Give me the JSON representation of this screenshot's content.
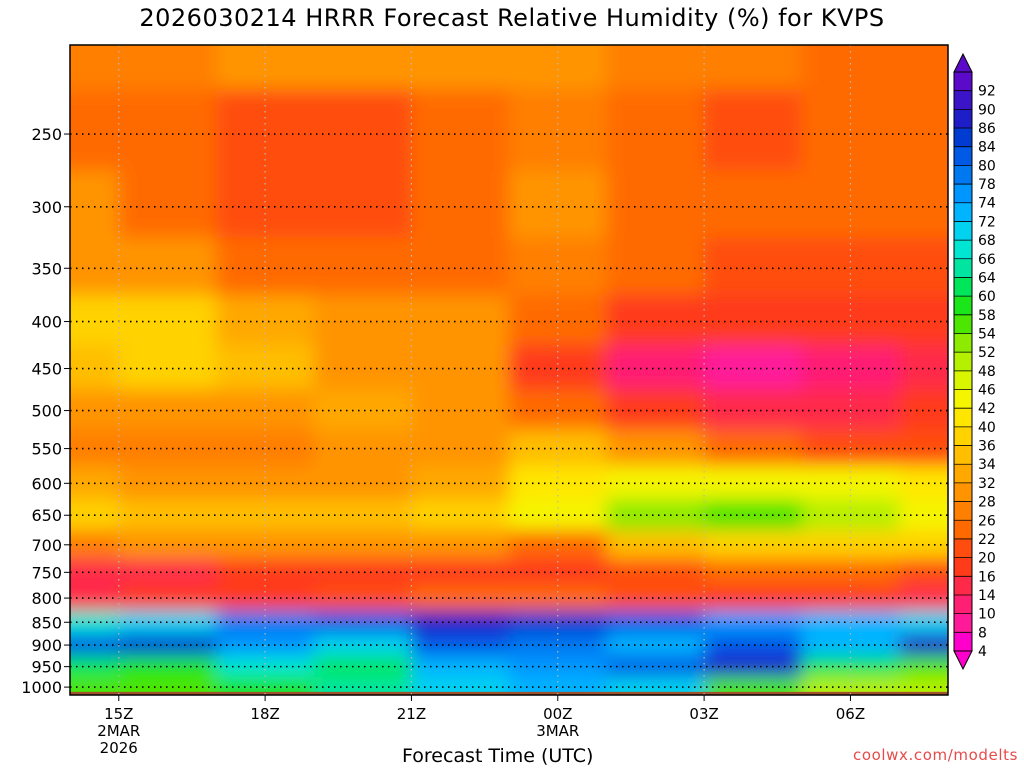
{
  "chart_data": {
    "type": "heatmap",
    "title": "2026030214 HRRR Forecast Relative Humidity (%) for KVPS",
    "xlabel": "Forecast Time (UTC)",
    "ylabel": "",
    "credit": "coolwx.com/modelts",
    "x_ticks": [
      {
        "label": "15Z",
        "sub": [
          "2MAR",
          "2026"
        ],
        "hours": 0
      },
      {
        "label": "18Z",
        "sub": [],
        "hours": 3
      },
      {
        "label": "21Z",
        "sub": [],
        "hours": 6
      },
      {
        "label": "00Z",
        "sub": [
          "3MAR"
        ],
        "hours": 9
      },
      {
        "label": "03Z",
        "sub": [],
        "hours": 12
      },
      {
        "label": "06Z",
        "sub": [],
        "hours": 15
      }
    ],
    "xlim_hours": [
      -1,
      17
    ],
    "y_ticks": [
      250,
      300,
      350,
      400,
      450,
      500,
      550,
      600,
      650,
      700,
      750,
      800,
      850,
      900,
      950,
      1000
    ],
    "ylim_hpa": [
      200,
      1020
    ],
    "y_scale": "log-pressure (inverted)",
    "surface_pressure_hpa": 1012,
    "surface_color": "#a0522d",
    "grid": true,
    "colorbar_levels": [
      4,
      8,
      10,
      14,
      16,
      20,
      22,
      26,
      28,
      32,
      34,
      36,
      40,
      42,
      46,
      48,
      52,
      54,
      58,
      60,
      64,
      66,
      68,
      72,
      74,
      78,
      80,
      84,
      86,
      90,
      92
    ],
    "colorbar_colors": [
      "#ff00cc",
      "#ff1a99",
      "#ff1f73",
      "#ff2a4a",
      "#ff3b1a",
      "#ff4d10",
      "#ff6a00",
      "#ff7f00",
      "#ff9400",
      "#ffa800",
      "#ffbe00",
      "#ffd200",
      "#ffe600",
      "#f5f500",
      "#d9f500",
      "#b4f000",
      "#8ceb00",
      "#4de600",
      "#1ae61a",
      "#00e65a",
      "#00e6a0",
      "#00e6d2",
      "#00d2f0",
      "#00b4ff",
      "#0096ff",
      "#0078f0",
      "#005ae6",
      "#003cd2",
      "#1e1ec8",
      "#3c14c8",
      "#5a0ac8"
    ],
    "colorbar_placement": "right",
    "time_hours": [
      -1,
      1,
      3,
      5,
      7,
      9,
      11,
      13,
      15,
      17
    ],
    "pressure_levels_hpa": [
      200,
      250,
      300,
      350,
      400,
      450,
      500,
      550,
      600,
      650,
      700,
      750,
      800,
      850,
      900,
      950,
      1000
    ],
    "rh_percent": [
      [
        26,
        26,
        28,
        28,
        28,
        28,
        26,
        26,
        24,
        24
      ],
      [
        24,
        22,
        20,
        20,
        22,
        26,
        22,
        20,
        22,
        22
      ],
      [
        28,
        22,
        20,
        20,
        22,
        28,
        22,
        22,
        22,
        22
      ],
      [
        30,
        30,
        22,
        22,
        22,
        26,
        22,
        20,
        20,
        20
      ],
      [
        36,
        38,
        32,
        30,
        28,
        24,
        18,
        16,
        16,
        18
      ],
      [
        34,
        38,
        34,
        30,
        28,
        18,
        12,
        8,
        10,
        14
      ],
      [
        28,
        30,
        30,
        32,
        30,
        24,
        18,
        14,
        14,
        18
      ],
      [
        26,
        26,
        26,
        28,
        30,
        34,
        30,
        24,
        20,
        20
      ],
      [
        32,
        30,
        30,
        30,
        32,
        40,
        44,
        44,
        42,
        40
      ],
      [
        36,
        34,
        34,
        34,
        36,
        42,
        52,
        54,
        48,
        44
      ],
      [
        26,
        28,
        28,
        30,
        30,
        22,
        34,
        36,
        36,
        36
      ],
      [
        14,
        14,
        16,
        18,
        18,
        18,
        20,
        22,
        22,
        20
      ],
      [
        14,
        16,
        16,
        20,
        24,
        22,
        20,
        18,
        16,
        14
      ],
      [
        66,
        70,
        78,
        82,
        86,
        84,
        80,
        76,
        72,
        70
      ],
      [
        80,
        84,
        76,
        70,
        82,
        78,
        72,
        80,
        72,
        86
      ],
      [
        62,
        58,
        66,
        60,
        72,
        74,
        80,
        88,
        62,
        56
      ],
      [
        56,
        54,
        58,
        64,
        70,
        72,
        68,
        56,
        48,
        50
      ]
    ]
  }
}
